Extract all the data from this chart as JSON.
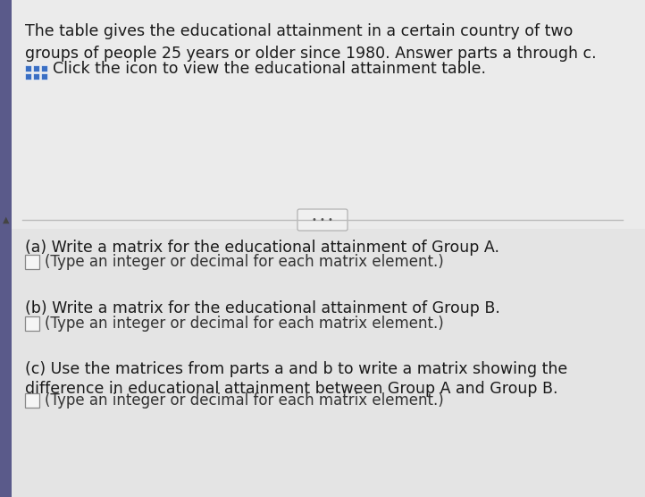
{
  "bg_top": "#e8e8e8",
  "bg_bottom": "#e0e0e0",
  "left_bar_color": "#5a5a8a",
  "triangle_color": "#444444",
  "icon_color": "#3a6fc4",
  "icon_bg": "#3a6fc4",
  "text_color": "#1a1a1a",
  "sub_text_color": "#333333",
  "divider_color": "#bbbbbb",
  "dots_bg": "#f0f0f0",
  "dots_border": "#aaaaaa",
  "checkbox_bg": "#f5f5f5",
  "checkbox_border": "#888888",
  "header_line1": "The table gives the educational attainment in a certain country of two",
  "header_line2": "groups of people 25 years or older since 1980. Answer parts a through c.",
  "header_line3": "Click the icon to view the educational attainment table.",
  "part_a": "(a) Write a matrix for the educational attainment of Group A.",
  "part_b": "(b) Write a matrix for the educational attainment of Group B.",
  "part_c1": "(c) Use the matrices from parts a and b to write a matrix showing the",
  "part_c2": "difference in educational attainment between Group A and Group B.",
  "sub_text": "(Type an integer or decimal for each matrix element.)",
  "font_size": 12.5,
  "font_size_sub": 12.0
}
